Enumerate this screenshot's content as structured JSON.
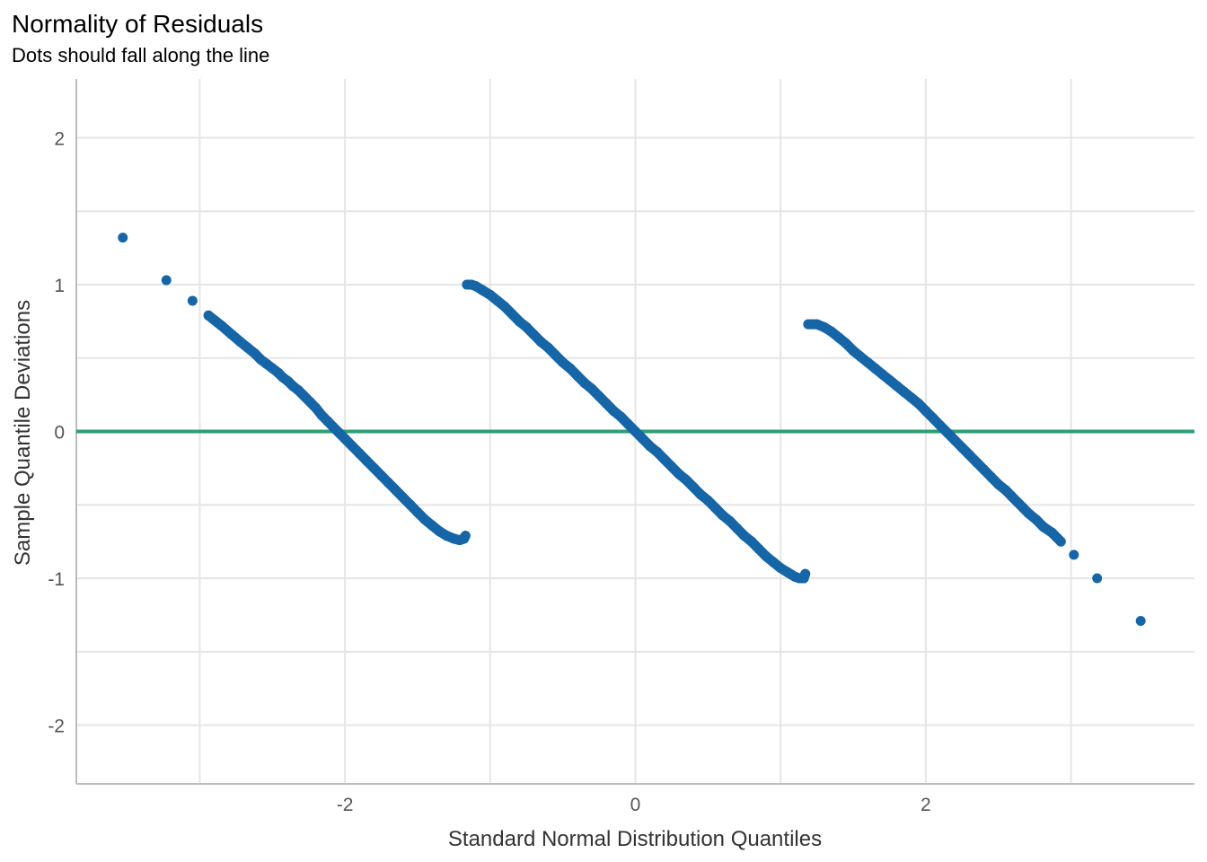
{
  "chart_data": {
    "type": "scatter",
    "title": "Normality of Residuals",
    "subtitle": "Dots should fall along the line",
    "xlabel": "Standard Normal Distribution Quantiles",
    "ylabel": "Sample Quantile Deviations",
    "xlim": [
      -3.85,
      3.85
    ],
    "ylim": [
      -2.4,
      2.4
    ],
    "x_ticks": [
      -2,
      0,
      2
    ],
    "x_tick_labels": [
      "-2",
      "0",
      "2"
    ],
    "y_ticks": [
      -2,
      -1,
      0,
      1,
      2
    ],
    "y_tick_labels": [
      "-2",
      "-1",
      "0",
      "1",
      "2"
    ],
    "x_minor_gridlines": [
      -3,
      -1,
      1,
      3
    ],
    "y_minor_gridlines": [
      -1.5,
      -0.5,
      0.5,
      1.5
    ],
    "grid": true,
    "reference_line": {
      "y": 0
    },
    "colors": {
      "points": "#1565a7",
      "reference_line": "#2e9e74",
      "grid": "#e5e5e5",
      "axis": "#bdbdbd"
    },
    "series": [
      {
        "points": [
          [
            -3.53,
            1.32
          ],
          [
            -3.23,
            1.03
          ],
          [
            -3.05,
            0.89
          ],
          [
            -2.94,
            0.79
          ],
          [
            -2.85,
            0.72
          ],
          [
            -2.78,
            0.66
          ],
          [
            -2.72,
            0.61
          ],
          [
            -2.67,
            0.57
          ],
          [
            -2.62,
            0.53
          ],
          [
            -2.58,
            0.49
          ],
          [
            -2.54,
            0.46
          ],
          [
            -2.5,
            0.43
          ],
          [
            -2.46,
            0.4
          ],
          [
            -2.43,
            0.37
          ],
          [
            -2.39,
            0.34
          ],
          [
            -2.36,
            0.31
          ],
          [
            -2.32,
            0.28
          ],
          [
            -2.28,
            0.24
          ],
          [
            -2.24,
            0.2
          ],
          [
            -2.2,
            0.16
          ],
          [
            -2.16,
            0.11
          ],
          [
            -2.12,
            0.07
          ],
          [
            -2.08,
            0.03
          ],
          [
            -2.04,
            -0.01
          ],
          [
            -2.0,
            -0.05
          ],
          [
            -1.95,
            -0.1
          ],
          [
            -1.9,
            -0.15
          ],
          [
            -1.85,
            -0.2
          ],
          [
            -1.8,
            -0.25
          ],
          [
            -1.75,
            -0.3
          ],
          [
            -1.7,
            -0.35
          ],
          [
            -1.65,
            -0.4
          ],
          [
            -1.6,
            -0.45
          ],
          [
            -1.55,
            -0.5
          ],
          [
            -1.5,
            -0.55
          ],
          [
            -1.45,
            -0.6
          ],
          [
            -1.4,
            -0.64
          ],
          [
            -1.35,
            -0.68
          ],
          [
            -1.3,
            -0.71
          ],
          [
            -1.25,
            -0.73
          ],
          [
            -1.21,
            -0.74
          ],
          [
            -1.18,
            -0.73
          ],
          [
            -1.17,
            -0.71
          ]
        ]
      },
      {
        "points": [
          [
            -1.16,
            1.0
          ],
          [
            -1.13,
            1.0
          ],
          [
            -1.1,
            0.99
          ],
          [
            -1.05,
            0.96
          ],
          [
            -1.0,
            0.93
          ],
          [
            -0.95,
            0.89
          ],
          [
            -0.9,
            0.85
          ],
          [
            -0.85,
            0.8
          ],
          [
            -0.8,
            0.75
          ],
          [
            -0.75,
            0.71
          ],
          [
            -0.7,
            0.66
          ],
          [
            -0.65,
            0.61
          ],
          [
            -0.6,
            0.57
          ],
          [
            -0.55,
            0.52
          ],
          [
            -0.5,
            0.47
          ],
          [
            -0.45,
            0.43
          ],
          [
            -0.4,
            0.38
          ],
          [
            -0.35,
            0.33
          ],
          [
            -0.3,
            0.29
          ],
          [
            -0.25,
            0.24
          ],
          [
            -0.2,
            0.19
          ],
          [
            -0.15,
            0.14
          ],
          [
            -0.1,
            0.1
          ],
          [
            -0.05,
            0.05
          ],
          [
            0.0,
            0.0
          ],
          [
            0.05,
            -0.05
          ],
          [
            0.1,
            -0.1
          ],
          [
            0.15,
            -0.14
          ],
          [
            0.2,
            -0.19
          ],
          [
            0.25,
            -0.24
          ],
          [
            0.3,
            -0.29
          ],
          [
            0.35,
            -0.33
          ],
          [
            0.4,
            -0.38
          ],
          [
            0.45,
            -0.43
          ],
          [
            0.5,
            -0.47
          ],
          [
            0.55,
            -0.52
          ],
          [
            0.6,
            -0.57
          ],
          [
            0.65,
            -0.61
          ],
          [
            0.7,
            -0.66
          ],
          [
            0.75,
            -0.71
          ],
          [
            0.8,
            -0.75
          ],
          [
            0.85,
            -0.8
          ],
          [
            0.9,
            -0.85
          ],
          [
            0.95,
            -0.89
          ],
          [
            1.0,
            -0.93
          ],
          [
            1.05,
            -0.96
          ],
          [
            1.1,
            -0.99
          ],
          [
            1.13,
            -1.0
          ],
          [
            1.16,
            -1.0
          ],
          [
            1.17,
            -0.97
          ]
        ]
      },
      {
        "points": [
          [
            1.19,
            0.73
          ],
          [
            1.22,
            0.73
          ],
          [
            1.25,
            0.73
          ],
          [
            1.3,
            0.71
          ],
          [
            1.35,
            0.68
          ],
          [
            1.4,
            0.64
          ],
          [
            1.45,
            0.6
          ],
          [
            1.5,
            0.55
          ],
          [
            1.55,
            0.51
          ],
          [
            1.6,
            0.47
          ],
          [
            1.65,
            0.43
          ],
          [
            1.7,
            0.39
          ],
          [
            1.75,
            0.35
          ],
          [
            1.8,
            0.31
          ],
          [
            1.85,
            0.27
          ],
          [
            1.9,
            0.23
          ],
          [
            1.95,
            0.19
          ],
          [
            2.0,
            0.14
          ],
          [
            2.05,
            0.09
          ],
          [
            2.1,
            0.04
          ],
          [
            2.15,
            -0.01
          ],
          [
            2.2,
            -0.06
          ],
          [
            2.25,
            -0.11
          ],
          [
            2.3,
            -0.16
          ],
          [
            2.35,
            -0.21
          ],
          [
            2.4,
            -0.26
          ],
          [
            2.45,
            -0.31
          ],
          [
            2.5,
            -0.36
          ],
          [
            2.55,
            -0.4
          ],
          [
            2.59,
            -0.44
          ],
          [
            2.63,
            -0.48
          ],
          [
            2.67,
            -0.52
          ],
          [
            2.71,
            -0.56
          ],
          [
            2.76,
            -0.6
          ],
          [
            2.81,
            -0.65
          ],
          [
            2.87,
            -0.69
          ],
          [
            2.93,
            -0.75
          ],
          [
            3.02,
            -0.84
          ],
          [
            3.18,
            -1.0
          ],
          [
            3.48,
            -1.29
          ]
        ]
      }
    ]
  }
}
